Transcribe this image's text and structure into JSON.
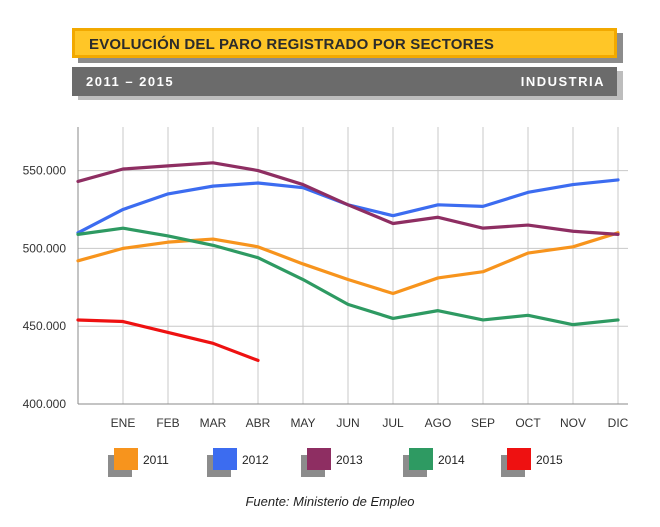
{
  "header": {
    "title": "EVOLUCIÓN DEL PARO REGISTRADO POR SECTORES",
    "period": "2011 – 2015",
    "sector": "INDUSTRIA"
  },
  "source": "Fuente: Ministerio de Empleo",
  "chart_data": {
    "type": "line",
    "title": "",
    "xlabel": "",
    "ylabel": "",
    "categories": [
      "ENE",
      "FEB",
      "MAR",
      "ABR",
      "MAY",
      "JUN",
      "JUL",
      "AGO",
      "SEP",
      "OCT",
      "NOV",
      "DIC"
    ],
    "y_ticks": [
      400000,
      450000,
      500000,
      550000
    ],
    "y_tick_labels": [
      "400.000",
      "450.000",
      "500.000",
      "550.000"
    ],
    "ylim": [
      400000,
      578000
    ],
    "grid": true,
    "legend_position": "bottom",
    "series": [
      {
        "name": "2011",
        "color": "#f7941d",
        "start": 492000,
        "values": [
          500000,
          504000,
          506000,
          501000,
          490000,
          480000,
          471000,
          481000,
          485000,
          497000,
          501000,
          510000
        ]
      },
      {
        "name": "2012",
        "color": "#3c6cf0",
        "start": 510000,
        "values": [
          525000,
          535000,
          540000,
          542000,
          539000,
          528000,
          521000,
          528000,
          527000,
          536000,
          541000,
          544000
        ]
      },
      {
        "name": "2013",
        "color": "#8e2e62",
        "start": 543000,
        "values": [
          551000,
          553000,
          555000,
          550000,
          541000,
          528000,
          516000,
          520000,
          513000,
          515000,
          511000,
          509000
        ]
      },
      {
        "name": "2014",
        "color": "#2e9a62",
        "start": 509000,
        "values": [
          513000,
          508000,
          502000,
          494000,
          480000,
          464000,
          455000,
          460000,
          454000,
          457000,
          451000,
          454000
        ]
      },
      {
        "name": "2015",
        "color": "#ee1111",
        "start": 454000,
        "values": [
          453000,
          446000,
          439000,
          428000,
          null,
          null,
          null,
          null,
          null,
          null,
          null,
          null
        ]
      }
    ]
  }
}
